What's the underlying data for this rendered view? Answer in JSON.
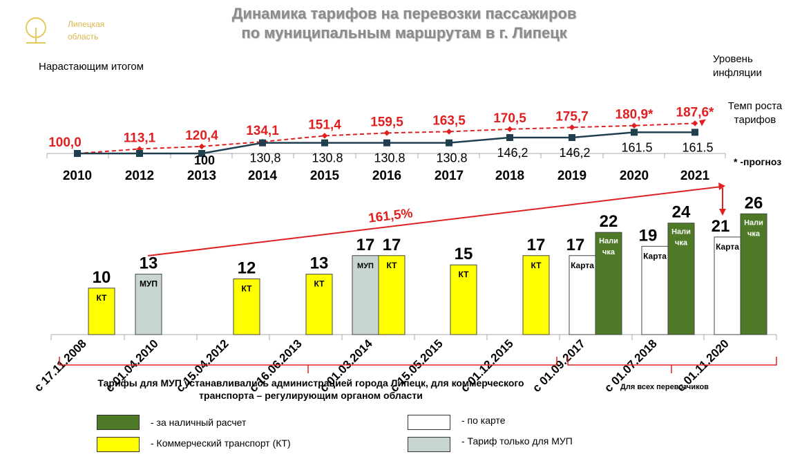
{
  "header": {
    "title_line1": "Динамика тарифов на перевозки пассажиров",
    "title_line2": "по муниципальным маршрутам в г. Липецк",
    "logo_text": "Липецкая область",
    "cumulative_label": "Нарастающим итогом",
    "inflation_label": "Уровень инфляции",
    "tariff_growth_label": "Темп роста тарифов",
    "forecast_note": "* -прогноз"
  },
  "colors": {
    "inflation": "#e02020",
    "tariff": "#1f3f4f",
    "cash": "#4e7a27",
    "kt": "#ffff00",
    "card": "#ffffff",
    "mup": "#c9d6cf",
    "bracket": "#e02020"
  },
  "chart_data": [
    {
      "type": "line",
      "title": "",
      "categories": [
        "2010",
        "2012",
        "2013",
        "2014",
        "2015",
        "2016",
        "2017",
        "2018",
        "2019",
        "2020",
        "2021"
      ],
      "series": [
        {
          "name": "Уровень инфляции",
          "values": [
            100.0,
            113.1,
            120.4,
            134.1,
            151.4,
            159.5,
            163.5,
            170.5,
            175.7,
            180.9,
            187.6
          ],
          "labels": [
            "100,0",
            "113,1",
            "120,4",
            "134,1",
            "151,4",
            "159,5",
            "163,5",
            "170,5",
            "175,7",
            "180,9*",
            "187,6*"
          ],
          "style": "dashed"
        },
        {
          "name": "Темп роста тарифов",
          "values": [
            100,
            100,
            100,
            130.8,
            130.8,
            130.8,
            130.8,
            146.2,
            146.2,
            161.5,
            161.5
          ],
          "labels": [
            "",
            "",
            "100",
            "130,8",
            "130.8",
            "130.8",
            "130.8",
            "146,2",
            "146,2",
            "161.5",
            "161.5"
          ],
          "style": "solid"
        }
      ]
    },
    {
      "type": "bar",
      "title": "",
      "categories": [
        "с 17.11.2008",
        "с 01.04.2010",
        "с 15.04.2012",
        "с 16.06.2013",
        "с 01.03.2014",
        "с 15.05.2015",
        "с 01.12.2015",
        "с 01.09.2017",
        "с 01.07.2018",
        "с 01.11.2020"
      ],
      "bars": [
        {
          "group": 0,
          "kind": "kt",
          "value": 10,
          "tag": "КТ"
        },
        {
          "group": 1,
          "kind": "mup",
          "value": 13,
          "tag": "МУП"
        },
        {
          "group": 2,
          "kind": "kt",
          "value": 12,
          "tag": "КТ"
        },
        {
          "group": 3,
          "kind": "kt",
          "value": 13,
          "tag": "КТ"
        },
        {
          "group": 4,
          "kind": "mup",
          "value": 17,
          "tag": "МУП"
        },
        {
          "group": 4,
          "kind": "kt",
          "value": 17,
          "tag": "КТ"
        },
        {
          "group": 5,
          "kind": "kt",
          "value": 15,
          "tag": "КТ"
        },
        {
          "group": 6,
          "kind": "kt",
          "value": 17,
          "tag": "КТ"
        },
        {
          "group": 7,
          "kind": "card",
          "value": 17,
          "tag": "Карта"
        },
        {
          "group": 7,
          "kind": "cash",
          "value": 22,
          "tag": "Нали чка"
        },
        {
          "group": 8,
          "kind": "card",
          "value": 19,
          "tag": "Карта"
        },
        {
          "group": 8,
          "kind": "cash",
          "value": 24,
          "tag": "Нали чка"
        },
        {
          "group": 9,
          "kind": "card",
          "value": 21,
          "tag": "Карта"
        },
        {
          "group": 9,
          "kind": "cash",
          "value": 26,
          "tag": "Нали чка"
        }
      ],
      "growth_annotation": "161,5%",
      "note_left": "Тарифы для МУП устанавливались администрацией города Липецк, для коммерческого транспорта – регулирующим органом области",
      "note_right": "Для всех перевозчиков",
      "legend": [
        {
          "kind": "cash",
          "label": "- за наличный расчет"
        },
        {
          "kind": "kt",
          "label": "- Коммерческий транспорт (КТ)"
        },
        {
          "kind": "card",
          "label": "- по карте"
        },
        {
          "kind": "mup",
          "label": "- Тариф только для МУП"
        }
      ]
    }
  ]
}
